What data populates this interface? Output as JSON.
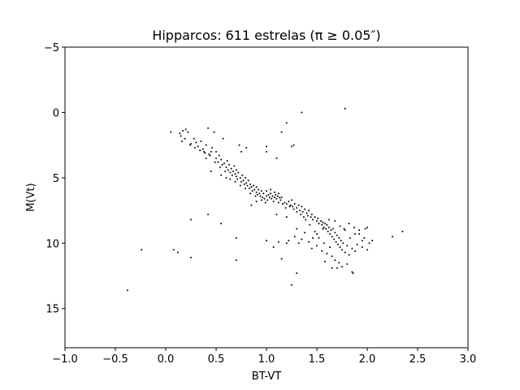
{
  "chart_data": {
    "type": "scatter",
    "title": "Hipparcos: 611 estrelas (π ≥ 0.05″)",
    "xlabel": "BT-VT",
    "ylabel": "M(Vt)",
    "xlim": [
      -1.0,
      3.0
    ],
    "ylim": [
      18,
      -5
    ],
    "y_inverted": true,
    "grid": false,
    "marker_color": "#000000",
    "x_ticks": [
      {
        "value": -1.0,
        "label": "−1.0"
      },
      {
        "value": -0.5,
        "label": "−0.5"
      },
      {
        "value": 0.0,
        "label": "0.0"
      },
      {
        "value": 0.5,
        "label": "0.5"
      },
      {
        "value": 1.0,
        "label": "1.0"
      },
      {
        "value": 1.5,
        "label": "1.5"
      },
      {
        "value": 2.0,
        "label": "2.0"
      },
      {
        "value": 2.5,
        "label": "2.5"
      },
      {
        "value": 3.0,
        "label": "3.0"
      }
    ],
    "y_ticks": [
      {
        "value": -5,
        "label": "−5"
      },
      {
        "value": 0,
        "label": "0"
      },
      {
        "value": 5,
        "label": "5"
      },
      {
        "value": 10,
        "label": "10"
      },
      {
        "value": 15,
        "label": "15"
      }
    ],
    "points": [
      [
        0.05,
        1.5
      ],
      [
        0.15,
        1.8
      ],
      [
        0.17,
        1.4
      ],
      [
        0.2,
        1.3
      ],
      [
        0.22,
        1.5
      ],
      [
        0.25,
        2.4
      ],
      [
        0.28,
        2.0
      ],
      [
        0.3,
        2.3
      ],
      [
        0.32,
        2.6
      ],
      [
        0.35,
        2.2
      ],
      [
        0.37,
        2.8
      ],
      [
        0.38,
        3.0
      ],
      [
        0.4,
        2.5
      ],
      [
        0.42,
        1.2
      ],
      [
        0.43,
        3.2
      ],
      [
        0.45,
        3.0
      ],
      [
        0.46,
        2.7
      ],
      [
        0.48,
        1.5
      ],
      [
        0.5,
        3.5
      ],
      [
        0.5,
        3.0
      ],
      [
        0.52,
        3.8
      ],
      [
        0.53,
        3.3
      ],
      [
        0.55,
        3.6
      ],
      [
        0.56,
        4.0
      ],
      [
        0.57,
        2.0
      ],
      [
        0.58,
        3.9
      ],
      [
        0.6,
        4.2
      ],
      [
        0.61,
        3.7
      ],
      [
        0.62,
        4.4
      ],
      [
        0.63,
        4.0
      ],
      [
        0.64,
        4.6
      ],
      [
        0.65,
        4.3
      ],
      [
        0.66,
        4.8
      ],
      [
        0.67,
        4.5
      ],
      [
        0.68,
        4.1
      ],
      [
        0.69,
        4.7
      ],
      [
        0.7,
        4.9
      ],
      [
        0.7,
        4.4
      ],
      [
        0.71,
        5.1
      ],
      [
        0.72,
        4.6
      ],
      [
        0.73,
        2.5
      ],
      [
        0.74,
        5.0
      ],
      [
        0.75,
        5.3
      ],
      [
        0.76,
        4.8
      ],
      [
        0.77,
        5.2
      ],
      [
        0.78,
        5.5
      ],
      [
        0.79,
        5.0
      ],
      [
        0.8,
        5.4
      ],
      [
        0.81,
        5.6
      ],
      [
        0.82,
        5.2
      ],
      [
        0.83,
        5.8
      ],
      [
        0.84,
        5.5
      ],
      [
        0.85,
        5.7
      ],
      [
        0.86,
        6.0
      ],
      [
        0.87,
        5.6
      ],
      [
        0.88,
        5.9
      ],
      [
        0.9,
        6.1
      ],
      [
        0.9,
        5.7
      ],
      [
        0.91,
        6.3
      ],
      [
        0.92,
        5.9
      ],
      [
        0.93,
        6.2
      ],
      [
        0.94,
        6.4
      ],
      [
        0.95,
        6.0
      ],
      [
        0.96,
        6.5
      ],
      [
        0.97,
        6.2
      ],
      [
        0.98,
        6.6
      ],
      [
        1.0,
        6.4
      ],
      [
        1.0,
        6.0
      ],
      [
        1.01,
        6.7
      ],
      [
        1.02,
        6.3
      ],
      [
        1.03,
        6.5
      ],
      [
        1.04,
        6.2
      ],
      [
        1.05,
        6.6
      ],
      [
        1.06,
        6.4
      ],
      [
        1.07,
        6.8
      ],
      [
        1.08,
        6.5
      ],
      [
        1.09,
        6.3
      ],
      [
        1.1,
        6.6
      ],
      [
        1.11,
        6.4
      ],
      [
        1.12,
        6.2
      ],
      [
        1.13,
        6.5
      ],
      [
        1.14,
        6.7
      ],
      [
        1.15,
        6.5
      ],
      [
        1.18,
        6.9
      ],
      [
        1.2,
        7.0
      ],
      [
        1.22,
        6.8
      ],
      [
        1.24,
        7.1
      ],
      [
        1.25,
        6.7
      ],
      [
        1.26,
        7.2
      ],
      [
        1.28,
        7.0
      ],
      [
        1.3,
        7.3
      ],
      [
        1.32,
        7.1
      ],
      [
        1.33,
        7.5
      ],
      [
        1.35,
        7.2
      ],
      [
        1.36,
        7.6
      ],
      [
        1.38,
        7.4
      ],
      [
        1.4,
        7.7
      ],
      [
        1.41,
        7.9
      ],
      [
        1.42,
        7.5
      ],
      [
        1.44,
        8.0
      ],
      [
        1.45,
        7.8
      ],
      [
        1.46,
        8.2
      ],
      [
        1.48,
        8.0
      ],
      [
        1.5,
        8.3
      ],
      [
        1.51,
        8.1
      ],
      [
        1.52,
        8.5
      ],
      [
        1.54,
        8.3
      ],
      [
        1.55,
        8.6
      ],
      [
        1.56,
        8.4
      ],
      [
        1.57,
        8.8
      ],
      [
        1.58,
        8.5
      ],
      [
        1.59,
        8.9
      ],
      [
        1.6,
        8.6
      ],
      [
        1.61,
        9.1
      ],
      [
        1.62,
        8.8
      ],
      [
        1.63,
        9.3
      ],
      [
        1.64,
        9.0
      ],
      [
        1.65,
        9.5
      ],
      [
        1.66,
        8.9
      ],
      [
        1.67,
        9.7
      ],
      [
        1.68,
        9.2
      ],
      [
        1.69,
        9.9
      ],
      [
        1.7,
        9.4
      ],
      [
        1.71,
        10.1
      ],
      [
        1.72,
        9.6
      ],
      [
        1.73,
        10.3
      ],
      [
        1.74,
        9.8
      ],
      [
        1.75,
        10.5
      ],
      [
        1.76,
        10.0
      ],
      [
        1.78,
        10.7
      ],
      [
        1.8,
        10.2
      ],
      [
        1.82,
        10.9
      ],
      [
        1.85,
        10.4
      ],
      [
        1.88,
        10.6
      ],
      [
        1.9,
        10.1
      ],
      [
        1.95,
        10.3
      ],
      [
        2.0,
        10.5
      ],
      [
        2.02,
        10.0
      ],
      [
        1.98,
        8.9
      ],
      [
        1.95,
        9.8
      ],
      [
        1.92,
        9.3
      ],
      [
        1.87,
        8.8
      ],
      [
        1.83,
        9.6
      ],
      [
        1.78,
        9.0
      ],
      [
        1.73,
        8.7
      ],
      [
        1.68,
        8.3
      ],
      [
        1.62,
        8.2
      ],
      [
        1.56,
        8.9
      ],
      [
        1.5,
        9.3
      ],
      [
        1.46,
        9.6
      ],
      [
        1.42,
        9.9
      ],
      [
        1.38,
        9.2
      ],
      [
        1.35,
        9.7
      ],
      [
        1.32,
        10.0
      ],
      [
        1.3,
        8.9
      ],
      [
        1.28,
        9.5
      ],
      [
        1.45,
        10.4
      ],
      [
        1.5,
        10.2
      ],
      [
        1.55,
        10.6
      ],
      [
        1.6,
        10.8
      ],
      [
        1.65,
        11.0
      ],
      [
        1.68,
        11.3
      ],
      [
        1.72,
        11.5
      ],
      [
        1.75,
        11.8
      ],
      [
        1.7,
        11.9
      ],
      [
        1.8,
        11.6
      ],
      [
        1.85,
        12.2
      ],
      [
        1.86,
        12.3
      ],
      [
        1.65,
        11.9
      ],
      [
        1.58,
        11.4
      ],
      [
        1.2,
        8.0
      ],
      [
        1.1,
        7.8
      ],
      [
        0.9,
        6.8
      ],
      [
        0.85,
        7.1
      ],
      [
        0.6,
        5.0
      ],
      [
        0.55,
        4.8
      ],
      [
        0.45,
        4.5
      ],
      [
        0.4,
        3.5
      ],
      [
        1.0,
        3.0
      ],
      [
        1.1,
        3.5
      ],
      [
        1.15,
        1.5
      ],
      [
        1.2,
        0.8
      ],
      [
        1.25,
        2.6
      ],
      [
        1.27,
        2.5
      ],
      [
        1.35,
        0.0
      ],
      [
        1.78,
        -0.3
      ],
      [
        1.0,
        2.6
      ],
      [
        0.8,
        2.7
      ],
      [
        0.75,
        3.0
      ],
      [
        0.25,
        8.2
      ],
      [
        0.42,
        7.8
      ],
      [
        0.55,
        8.5
      ],
      [
        0.7,
        9.6
      ],
      [
        0.7,
        11.3
      ],
      [
        1.0,
        9.8
      ],
      [
        1.07,
        10.3
      ],
      [
        1.12,
        9.9
      ],
      [
        1.15,
        11.2
      ],
      [
        1.2,
        10.0
      ],
      [
        1.22,
        9.8
      ],
      [
        1.25,
        13.2
      ],
      [
        1.3,
        12.3
      ],
      [
        0.08,
        10.5
      ],
      [
        0.12,
        10.7
      ],
      [
        0.25,
        11.1
      ],
      [
        -0.24,
        10.5
      ],
      [
        -0.38,
        13.6
      ],
      [
        2.25,
        9.5
      ],
      [
        2.35,
        9.1
      ],
      [
        1.92,
        9.0
      ],
      [
        1.97,
        9.6
      ],
      [
        2.05,
        9.8
      ],
      [
        2.0,
        8.8
      ],
      [
        1.88,
        9.3
      ],
      [
        1.82,
        8.5
      ],
      [
        1.77,
        8.9
      ],
      [
        1.63,
        10.3
      ],
      [
        1.57,
        10.0
      ],
      [
        1.52,
        9.6
      ],
      [
        1.48,
        9.1
      ],
      [
        1.43,
        8.6
      ],
      [
        1.39,
        8.2
      ],
      [
        1.37,
        8.0
      ],
      [
        1.34,
        7.8
      ],
      [
        1.3,
        7.6
      ],
      [
        1.27,
        7.4
      ],
      [
        1.23,
        7.2
      ],
      [
        1.19,
        7.3
      ],
      [
        1.16,
        7.0
      ],
      [
        1.12,
        6.9
      ],
      [
        1.08,
        6.1
      ],
      [
        1.04,
        5.9
      ],
      [
        0.99,
        6.9
      ],
      [
        0.95,
        6.7
      ],
      [
        0.89,
        6.4
      ],
      [
        0.84,
        6.2
      ],
      [
        0.79,
        5.8
      ],
      [
        0.74,
        5.6
      ],
      [
        0.69,
        5.3
      ],
      [
        0.64,
        5.1
      ],
      [
        0.59,
        4.5
      ],
      [
        0.54,
        4.2
      ],
      [
        0.49,
        3.8
      ],
      [
        0.44,
        3.3
      ],
      [
        0.39,
        3.1
      ],
      [
        0.34,
        2.9
      ],
      [
        0.29,
        2.7
      ],
      [
        0.24,
        2.5
      ],
      [
        0.19,
        2.0
      ],
      [
        0.16,
        2.2
      ],
      [
        0.14,
        1.6
      ]
    ]
  }
}
